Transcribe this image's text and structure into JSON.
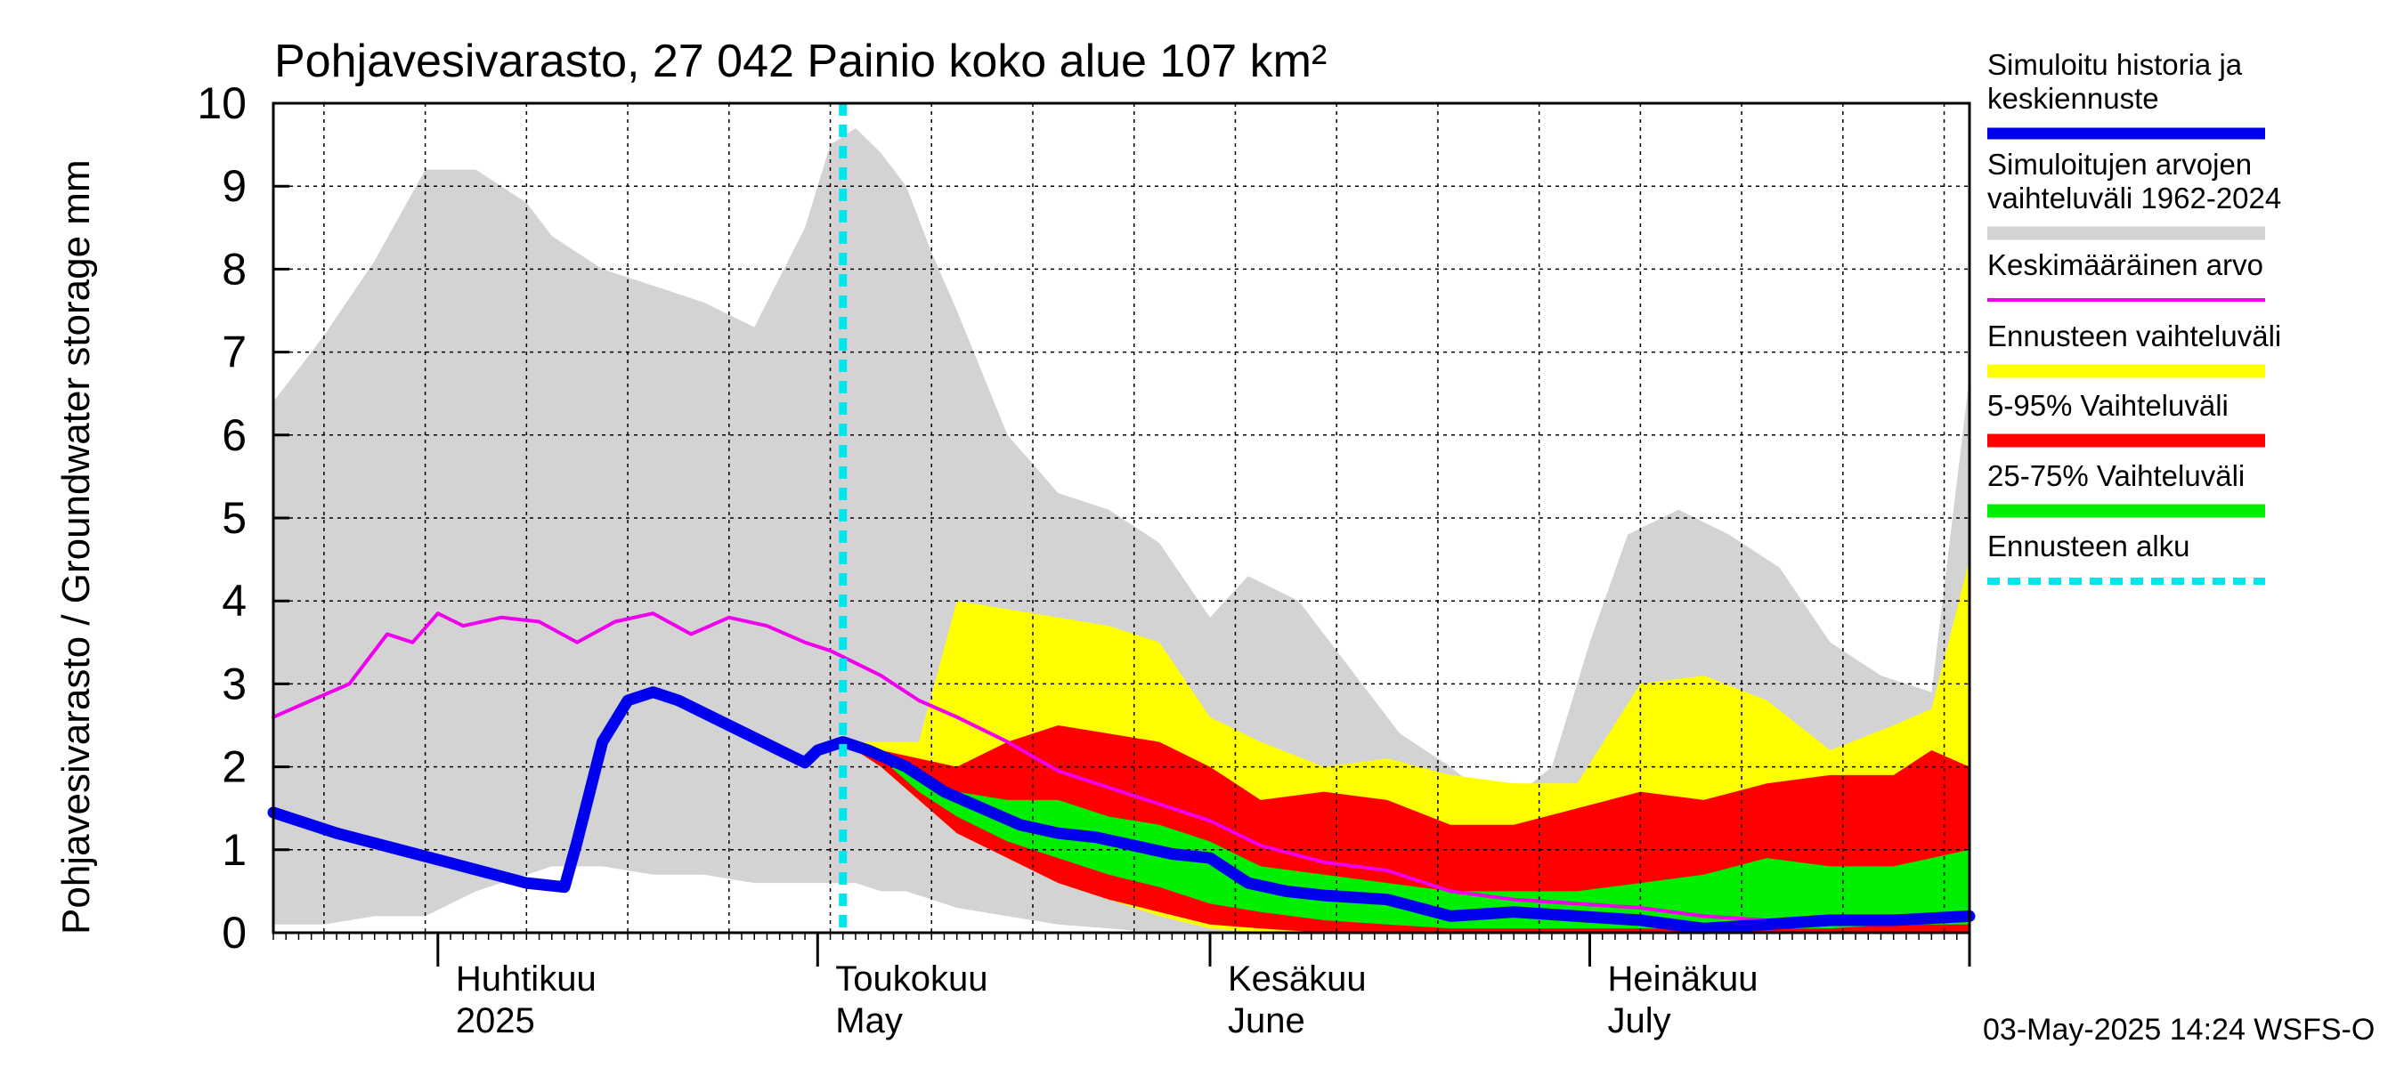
{
  "chart_data": {
    "type": "area",
    "title": "Pohjavesivarasto, 27 042 Painio koko alue 107 km²",
    "ylabel": "Pohjavesivarasto / Groundwater storage   mm",
    "xlabel": "",
    "ylim": [
      0,
      10
    ],
    "yticks": [
      "0",
      "1",
      "2",
      "3",
      "4",
      "5",
      "6",
      "7",
      "8",
      "9",
      "10"
    ],
    "grid": true,
    "legend_position": "right",
    "x_start": "2025-03-19",
    "x_end": "2025-07-31",
    "forecast_start": "2025-05-03",
    "month_labels": [
      {
        "date": "2025-04-01",
        "fi": "Huhtikuu",
        "en": "2025"
      },
      {
        "date": "2025-05-01",
        "fi": "Toukokuu",
        "en": "May"
      },
      {
        "date": "2025-06-01",
        "fi": "Kesäkuu",
        "en": "June"
      },
      {
        "date": "2025-07-01",
        "fi": "Heinäkuu",
        "en": "July"
      }
    ],
    "footer": "03-May-2025 14:24 WSFS-O",
    "legend": [
      {
        "label": "Simuloitu historia ja keskiennuste",
        "color": "#0000ee",
        "style": "line-thick"
      },
      {
        "label": "Simuloitujen arvojen vaihteluväli 1962-2024",
        "color": "#d3d3d3",
        "style": "band"
      },
      {
        "label": "Keskimääräinen arvo",
        "color": "#ee00ee",
        "style": "line"
      },
      {
        "label": "Ennusteen vaihteluväli",
        "color": "#ffff00",
        "style": "band"
      },
      {
        "label": "5-95% Vaihteluväli",
        "color": "#ff0000",
        "style": "band"
      },
      {
        "label": "25-75% Vaihteluväli",
        "color": "#00ee00",
        "style": "band"
      },
      {
        "label": "Ennusteen alku",
        "color": "#00e5ee",
        "style": "dashed"
      }
    ],
    "series": [
      {
        "key": "hist_range",
        "color": "#d3d3d3",
        "x": [
          "2025-03-19",
          "2025-03-23",
          "2025-03-27",
          "2025-03-31",
          "2025-04-04",
          "2025-04-06",
          "2025-04-08",
          "2025-04-10",
          "2025-04-14",
          "2025-04-18",
          "2025-04-22",
          "2025-04-26",
          "2025-04-30",
          "2025-05-02",
          "2025-05-04",
          "2025-05-06",
          "2025-05-08",
          "2025-05-10",
          "2025-05-12",
          "2025-05-16",
          "2025-05-20",
          "2025-05-24",
          "2025-05-28",
          "2025-06-01",
          "2025-06-04",
          "2025-06-08",
          "2025-06-12",
          "2025-06-16",
          "2025-06-20",
          "2025-06-24",
          "2025-06-28",
          "2025-07-01",
          "2025-07-04",
          "2025-07-08",
          "2025-07-12",
          "2025-07-16",
          "2025-07-20",
          "2025-07-24",
          "2025-07-28",
          "2025-07-31"
        ],
        "upper": [
          6.4,
          7.2,
          8.1,
          9.2,
          9.2,
          9.0,
          8.8,
          8.4,
          8.0,
          7.8,
          7.6,
          7.3,
          8.5,
          9.5,
          9.7,
          9.4,
          9.0,
          8.2,
          7.5,
          6.0,
          5.3,
          5.1,
          4.7,
          3.8,
          4.3,
          4.0,
          3.2,
          2.4,
          2.0,
          1.5,
          2.0,
          3.5,
          4.8,
          5.1,
          4.8,
          4.4,
          3.5,
          3.1,
          2.9,
          6.7
        ],
        "lower": [
          0.1,
          0.1,
          0.2,
          0.2,
          0.5,
          0.6,
          0.7,
          0.8,
          0.8,
          0.7,
          0.7,
          0.6,
          0.6,
          0.6,
          0.6,
          0.5,
          0.5,
          0.4,
          0.3,
          0.2,
          0.1,
          0.05,
          0.0,
          0.0,
          0.0,
          0.0,
          0.0,
          0.0,
          0.0,
          0.0,
          0.0,
          0.0,
          0.0,
          0.0,
          0.0,
          0.0,
          0.0,
          0.0,
          0.0,
          0.0
        ]
      },
      {
        "key": "forecast_range",
        "color": "#ffff00",
        "x": [
          "2025-05-03",
          "2025-05-06",
          "2025-05-09",
          "2025-05-12",
          "2025-05-16",
          "2025-05-20",
          "2025-05-24",
          "2025-05-28",
          "2025-06-01",
          "2025-06-05",
          "2025-06-10",
          "2025-06-15",
          "2025-06-20",
          "2025-06-25",
          "2025-06-30",
          "2025-07-05",
          "2025-07-10",
          "2025-07-15",
          "2025-07-20",
          "2025-07-25",
          "2025-07-28",
          "2025-07-31"
        ],
        "upper": [
          2.3,
          2.3,
          2.3,
          4.0,
          3.9,
          3.8,
          3.7,
          3.5,
          2.6,
          2.3,
          2.0,
          2.1,
          1.9,
          1.8,
          1.8,
          3.0,
          3.1,
          2.8,
          2.2,
          2.5,
          2.7,
          4.5
        ],
        "lower": [
          2.3,
          2.0,
          1.6,
          1.2,
          0.9,
          0.6,
          0.4,
          0.2,
          0.05,
          0.0,
          0.0,
          0.0,
          0.0,
          0.0,
          0.0,
          0.0,
          0.0,
          0.0,
          0.0,
          0.0,
          0.0,
          0.0
        ]
      },
      {
        "key": "p5_95",
        "color": "#ff0000",
        "x": [
          "2025-05-03",
          "2025-05-06",
          "2025-05-09",
          "2025-05-12",
          "2025-05-16",
          "2025-05-20",
          "2025-05-24",
          "2025-05-28",
          "2025-06-01",
          "2025-06-05",
          "2025-06-10",
          "2025-06-15",
          "2025-06-20",
          "2025-06-25",
          "2025-06-30",
          "2025-07-05",
          "2025-07-10",
          "2025-07-15",
          "2025-07-20",
          "2025-07-25",
          "2025-07-28",
          "2025-07-31"
        ],
        "upper": [
          2.3,
          2.2,
          2.1,
          2.0,
          2.3,
          2.5,
          2.4,
          2.3,
          2.0,
          1.6,
          1.7,
          1.6,
          1.3,
          1.3,
          1.5,
          1.7,
          1.6,
          1.8,
          1.9,
          1.9,
          2.2,
          2.0
        ],
        "lower": [
          2.3,
          2.0,
          1.6,
          1.2,
          0.9,
          0.6,
          0.4,
          0.25,
          0.1,
          0.05,
          0.0,
          0.0,
          0.0,
          0.0,
          0.0,
          0.0,
          0.0,
          0.0,
          0.0,
          0.0,
          0.0,
          0.0
        ]
      },
      {
        "key": "p25_75",
        "color": "#00ee00",
        "x": [
          "2025-05-03",
          "2025-05-06",
          "2025-05-09",
          "2025-05-12",
          "2025-05-16",
          "2025-05-20",
          "2025-05-24",
          "2025-05-28",
          "2025-06-01",
          "2025-06-05",
          "2025-06-10",
          "2025-06-15",
          "2025-06-20",
          "2025-06-25",
          "2025-06-30",
          "2025-07-05",
          "2025-07-10",
          "2025-07-15",
          "2025-07-20",
          "2025-07-25",
          "2025-07-28",
          "2025-07-31"
        ],
        "upper": [
          2.3,
          2.1,
          1.9,
          1.7,
          1.6,
          1.6,
          1.4,
          1.3,
          1.1,
          0.8,
          0.7,
          0.6,
          0.5,
          0.5,
          0.5,
          0.6,
          0.7,
          0.9,
          0.8,
          0.8,
          0.9,
          1.0
        ],
        "lower": [
          2.3,
          2.1,
          1.7,
          1.4,
          1.1,
          0.9,
          0.7,
          0.55,
          0.35,
          0.25,
          0.15,
          0.1,
          0.05,
          0.05,
          0.05,
          0.05,
          0.05,
          0.05,
          0.05,
          0.1,
          0.1,
          0.1
        ]
      },
      {
        "key": "mean",
        "color": "#ee00ee",
        "x": [
          "2025-03-19",
          "2025-03-22",
          "2025-03-25",
          "2025-03-28",
          "2025-03-30",
          "2025-04-01",
          "2025-04-03",
          "2025-04-06",
          "2025-04-09",
          "2025-04-12",
          "2025-04-15",
          "2025-04-18",
          "2025-04-21",
          "2025-04-24",
          "2025-04-27",
          "2025-04-30",
          "2025-05-02",
          "2025-05-06",
          "2025-05-09",
          "2025-05-12",
          "2025-05-16",
          "2025-05-20",
          "2025-05-24",
          "2025-05-28",
          "2025-06-01",
          "2025-06-05",
          "2025-06-10",
          "2025-06-15",
          "2025-06-20",
          "2025-06-25",
          "2025-06-30",
          "2025-07-05",
          "2025-07-10",
          "2025-07-15",
          "2025-07-20",
          "2025-07-25",
          "2025-07-31"
        ],
        "values": [
          2.6,
          2.8,
          3.0,
          3.6,
          3.5,
          3.85,
          3.7,
          3.8,
          3.75,
          3.5,
          3.75,
          3.85,
          3.6,
          3.8,
          3.7,
          3.5,
          3.4,
          3.1,
          2.8,
          2.6,
          2.3,
          1.95,
          1.75,
          1.55,
          1.35,
          1.05,
          0.85,
          0.75,
          0.5,
          0.4,
          0.35,
          0.3,
          0.2,
          0.15,
          0.2,
          0.2,
          0.2
        ]
      },
      {
        "key": "simulated",
        "color": "#0000ee",
        "x": [
          "2025-03-19",
          "2025-03-24",
          "2025-03-29",
          "2025-04-03",
          "2025-04-08",
          "2025-04-11",
          "2025-04-12",
          "2025-04-14",
          "2025-04-16",
          "2025-04-18",
          "2025-04-20",
          "2025-04-24",
          "2025-04-28",
          "2025-04-30",
          "2025-05-01",
          "2025-05-03",
          "2025-05-05",
          "2025-05-08",
          "2025-05-11",
          "2025-05-14",
          "2025-05-17",
          "2025-05-20",
          "2025-05-23",
          "2025-05-26",
          "2025-05-29",
          "2025-06-01",
          "2025-06-04",
          "2025-06-07",
          "2025-06-10",
          "2025-06-15",
          "2025-06-20",
          "2025-06-25",
          "2025-06-30",
          "2025-07-05",
          "2025-07-10",
          "2025-07-15",
          "2025-07-20",
          "2025-07-25",
          "2025-07-31"
        ],
        "values": [
          1.45,
          1.2,
          1.0,
          0.8,
          0.6,
          0.55,
          1.1,
          2.3,
          2.8,
          2.9,
          2.8,
          2.5,
          2.2,
          2.05,
          2.2,
          2.3,
          2.2,
          2.0,
          1.7,
          1.5,
          1.3,
          1.2,
          1.15,
          1.05,
          0.95,
          0.9,
          0.6,
          0.5,
          0.45,
          0.4,
          0.2,
          0.25,
          0.2,
          0.15,
          0.05,
          0.1,
          0.15,
          0.15,
          0.2
        ]
      }
    ]
  }
}
